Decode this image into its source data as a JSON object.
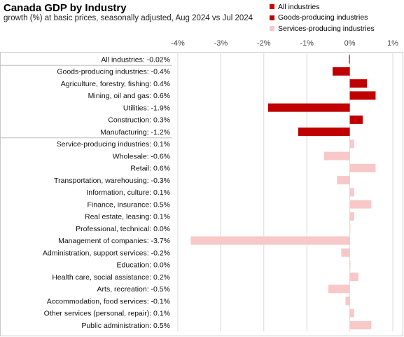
{
  "chart_data": {
    "type": "bar",
    "orientation": "horizontal",
    "title": "Canada GDP by Industry",
    "subtitle": "growth (%) at basic prices, seasonally  adjusted, Aug 2024 vs Jul 2024",
    "xlabel": "",
    "ylabel": "",
    "xlim": [
      -4,
      1
    ],
    "x_ticks": [
      "-4%",
      "-3%",
      "-2%",
      "-1%",
      "0%",
      "1%"
    ],
    "x_axis_position": "top",
    "grid": "vertical",
    "legend_position": "top-right",
    "legend": [
      {
        "name": "All industries",
        "color": "#d20000"
      },
      {
        "name": "Goods-producing industries",
        "color": "#c00000"
      },
      {
        "name": "Services-producing industries",
        "color": "#f8c8c8"
      }
    ],
    "categories": [
      {
        "label": "All industries: -0.02%",
        "value": -0.02,
        "group": "all",
        "color": "#d20000"
      },
      {
        "label": "Goods-producing industries: -0.4%",
        "value": -0.4,
        "group": "goods",
        "color": "#c00000"
      },
      {
        "label": "Agriculture, forestry, fishing: 0.4%",
        "value": 0.4,
        "group": "goods",
        "color": "#c00000"
      },
      {
        "label": "Mining, oil and gas: 0.6%",
        "value": 0.6,
        "group": "goods",
        "color": "#c00000"
      },
      {
        "label": "Utilities: -1.9%",
        "value": -1.9,
        "group": "goods",
        "color": "#c00000"
      },
      {
        "label": "Construction: 0.3%",
        "value": 0.3,
        "group": "goods",
        "color": "#c00000"
      },
      {
        "label": "Manufacturing: -1.2%",
        "value": -1.2,
        "group": "goods",
        "color": "#c00000"
      },
      {
        "label": "Service-producing industries: 0.1%",
        "value": 0.1,
        "group": "services",
        "color": "#f8c8c8"
      },
      {
        "label": "Wholesale: -0.6%",
        "value": -0.6,
        "group": "services",
        "color": "#f8c8c8"
      },
      {
        "label": "Retail: 0.6%",
        "value": 0.6,
        "group": "services",
        "color": "#f8c8c8"
      },
      {
        "label": "Transportation, warehousing: -0.3%",
        "value": -0.3,
        "group": "services",
        "color": "#f8c8c8"
      },
      {
        "label": "Information, culture: 0.1%",
        "value": 0.1,
        "group": "services",
        "color": "#f8c8c8"
      },
      {
        "label": "Finance, insurance: 0.5%",
        "value": 0.5,
        "group": "services",
        "color": "#f8c8c8"
      },
      {
        "label": "Real estate, leasing: 0.1%",
        "value": 0.1,
        "group": "services",
        "color": "#f8c8c8"
      },
      {
        "label": "Professional, technical: 0.0%",
        "value": 0.0,
        "group": "services",
        "color": "#f8c8c8"
      },
      {
        "label": "Management of companies: -3.7%",
        "value": -3.7,
        "group": "services",
        "color": "#f8c8c8"
      },
      {
        "label": "Administration, support services: -0.2%",
        "value": -0.2,
        "group": "services",
        "color": "#f8c8c8"
      },
      {
        "label": "Education: 0.0%",
        "value": 0.0,
        "group": "services",
        "color": "#f8c8c8"
      },
      {
        "label": "Health care, social assistance: 0.2%",
        "value": 0.2,
        "group": "services",
        "color": "#f8c8c8"
      },
      {
        "label": "Arts, recreation: -0.5%",
        "value": -0.5,
        "group": "services",
        "color": "#f8c8c8"
      },
      {
        "label": "Accommodation, food services: -0.1%",
        "value": -0.1,
        "group": "services",
        "color": "#f8c8c8"
      },
      {
        "label": "Other services (personal, repair): 0.1%",
        "value": 0.1,
        "group": "services",
        "color": "#f8c8c8"
      },
      {
        "label": "Public administration: 0.5%",
        "value": 0.5,
        "group": "services",
        "color": "#f8c8c8"
      }
    ]
  }
}
